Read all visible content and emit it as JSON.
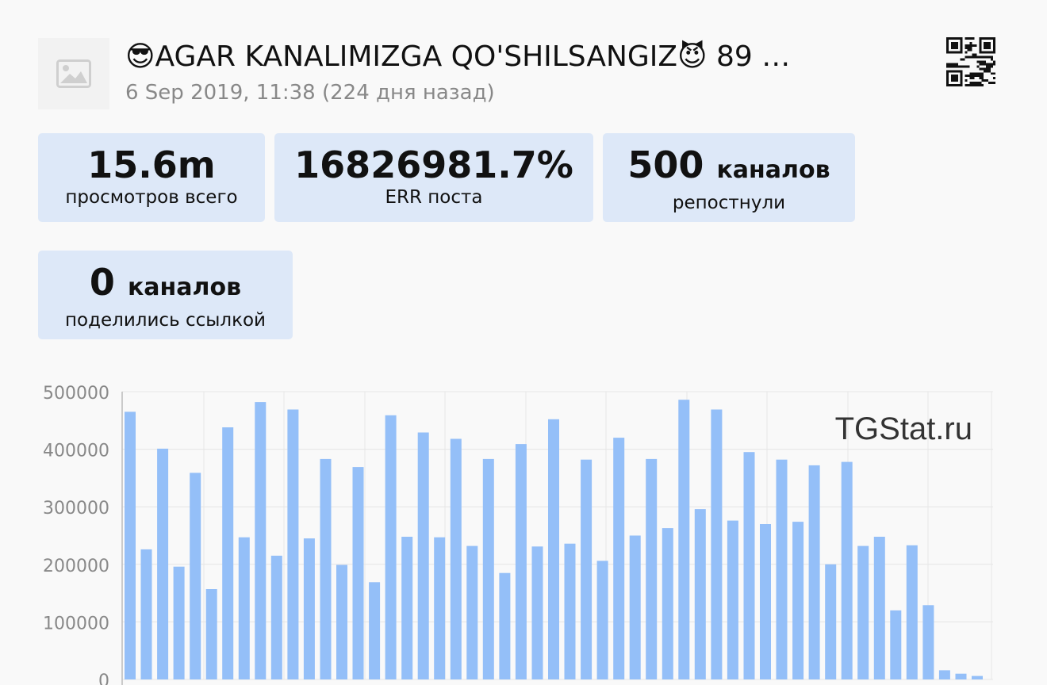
{
  "header": {
    "title": "😎AGAR KANALIMIZGA QO'SHILSANGIZ😈 89 …",
    "date": "6 Sep 2019, 11:38 (224 дня назад)",
    "thumbnail_icon": "image-placeholder-icon",
    "qr_icon": "qr-code-icon"
  },
  "stats": [
    {
      "value": "15.6m",
      "unit": "",
      "label": "просмотров всего"
    },
    {
      "value": "16826981.7%",
      "unit": "",
      "label": "ERR поста"
    },
    {
      "value": "500",
      "unit": "каналов",
      "label": "репостнули"
    },
    {
      "value": "0",
      "unit": "каналов",
      "label": "поделились ссылкой"
    }
  ],
  "chart_data": {
    "type": "bar",
    "watermark": "TGStat.ru",
    "ylim": [
      0,
      500000
    ],
    "yticks": [
      "500000",
      "400000",
      "300000",
      "200000",
      "100000",
      "0"
    ],
    "grid": true,
    "bar_color": "#94bff8",
    "values": [
      465000,
      226000,
      401000,
      196000,
      359000,
      157000,
      438000,
      247000,
      482000,
      215000,
      469000,
      245000,
      383000,
      199000,
      369000,
      169000,
      459000,
      248000,
      429000,
      247000,
      418000,
      232000,
      383000,
      185000,
      409000,
      231000,
      452000,
      236000,
      382000,
      206000,
      420000,
      250000,
      383000,
      263000,
      486000,
      296000,
      469000,
      276000,
      395000,
      270000,
      382000,
      274000,
      372000,
      200000,
      378000,
      232000,
      248000,
      120000,
      233000,
      129000,
      16000,
      10000,
      6000
    ]
  }
}
